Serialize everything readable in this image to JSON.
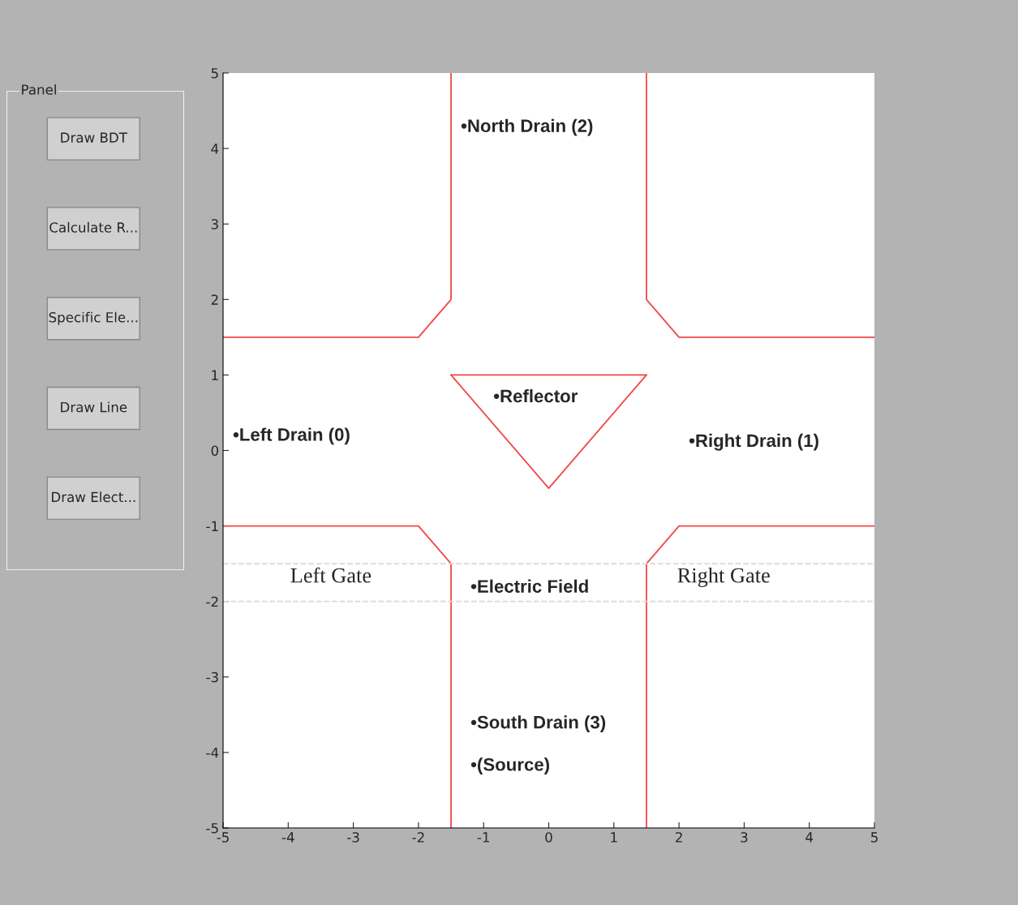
{
  "chart_data": [
    {
      "type": "line",
      "xlim": [
        -5,
        5
      ],
      "ylim": [
        -5,
        5
      ],
      "xticks": [
        -5,
        -4,
        -3,
        -2,
        -1,
        0,
        1,
        2,
        3,
        4,
        5
      ],
      "yticks": [
        -5,
        -4,
        -3,
        -2,
        -1,
        0,
        1,
        2,
        3,
        4,
        5
      ],
      "grid": false,
      "legend": false,
      "marker": "none",
      "line_style": "solid",
      "series": [
        {
          "color": "#f04848",
          "x": [
            -1.5,
            -1.5,
            -2,
            -5
          ],
          "values": [
            5,
            2,
            1.5,
            1.5
          ]
        },
        {
          "color": "#f04848",
          "x": [
            1.5,
            1.5,
            2,
            5
          ],
          "values": [
            5,
            2,
            1.5,
            1.5
          ]
        },
        {
          "color": "#f04848",
          "x": [
            -5,
            -2,
            -1.5,
            -1.5
          ],
          "values": [
            -1,
            -1,
            -1.5,
            -5
          ]
        },
        {
          "color": "#f04848",
          "x": [
            5,
            2,
            1.5,
            1.5
          ],
          "values": [
            -1,
            -1,
            -1.5,
            -5
          ]
        },
        {
          "color": "#f04848",
          "x": [
            -1.5,
            1.5
          ],
          "values": [
            1,
            1
          ]
        },
        {
          "color": "#f04848",
          "x": [
            -1.5,
            0,
            1.5
          ],
          "values": [
            1,
            -0.5,
            1
          ]
        }
      ],
      "ref_lines": [
        {
          "axis": "y",
          "value": -1.5,
          "color": "#d9d9d9",
          "line_style": "dashed"
        },
        {
          "axis": "y",
          "value": -2,
          "color": "#d9d9d9",
          "line_style": "dashed"
        }
      ],
      "annotations": [
        "•North Drain (2)",
        "•Left Drain (0)",
        "•Reflector",
        "•Right Drain (1)",
        "Left Gate",
        "•Electric Field",
        "Right Gate",
        "•South Drain (3)",
        "•(Source)"
      ]
    },
    {
      "type": "other",
      "title": "Panel",
      "annotations": [
        "Draw BDT",
        "Calculate R...",
        "Specific Ele...",
        "Draw Line",
        "Draw Elect..."
      ]
    }
  ]
}
